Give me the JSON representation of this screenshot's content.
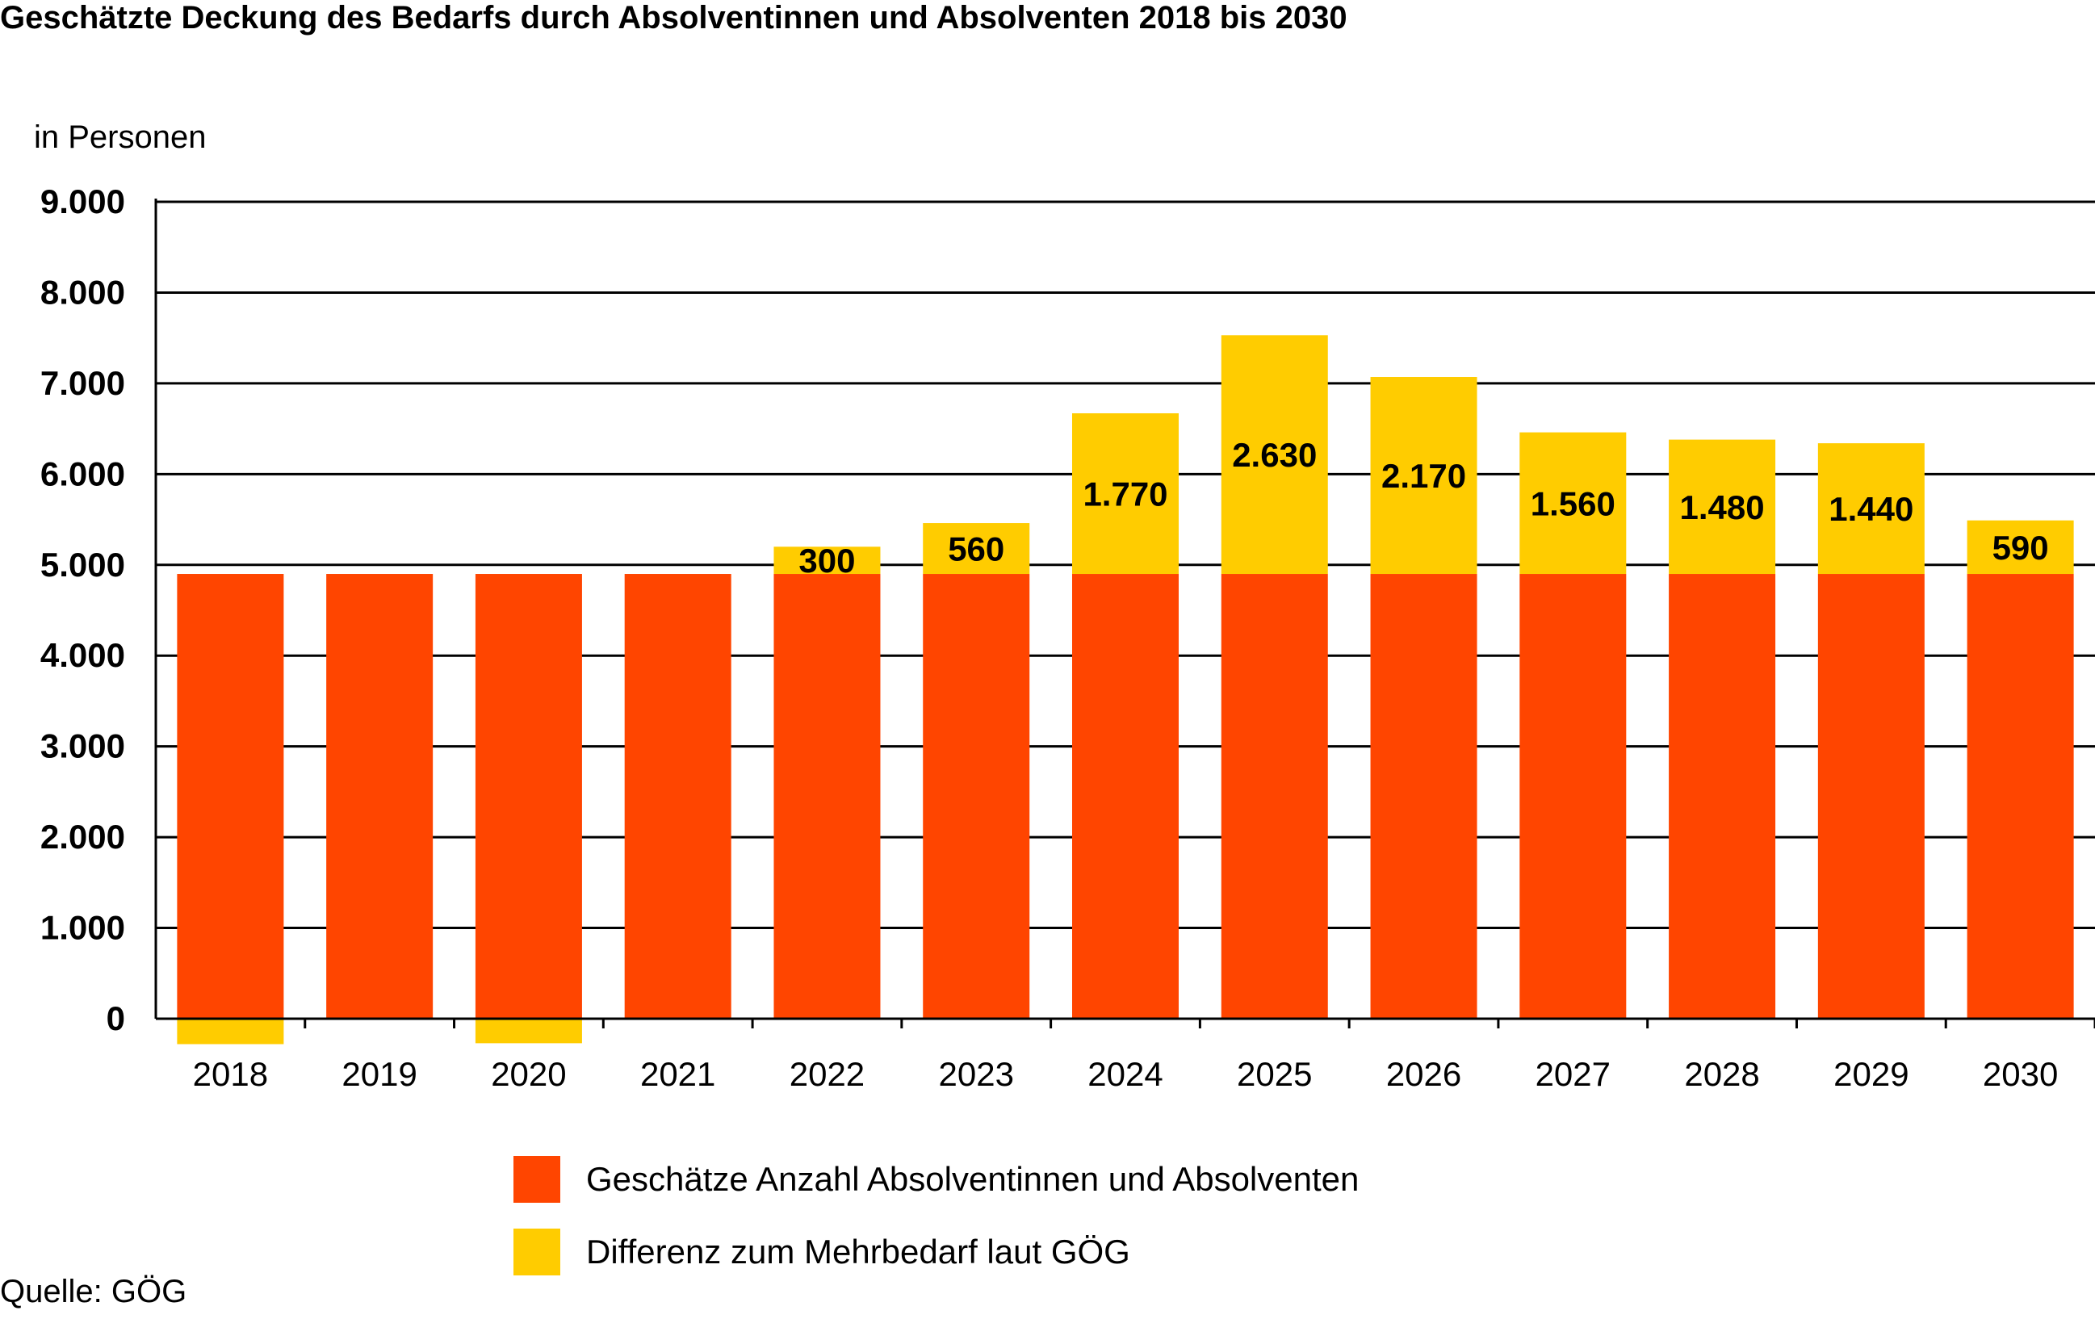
{
  "title": "Geschätzte Deckung des Bedarfs durch Absolventinnen und Absolventen 2018 bis 2030",
  "source": "Quelle: GÖG",
  "chart_data": {
    "type": "bar",
    "stacked": true,
    "title": "Geschätzte Deckung des Bedarfs durch Absolventinnen und Absolventen 2018 bis 2030",
    "ylabel": "in Personen",
    "xlabel": "",
    "ylim": [
      0,
      9000
    ],
    "yticks": [
      0,
      1000,
      2000,
      3000,
      4000,
      5000,
      6000,
      7000,
      8000,
      9000
    ],
    "ytick_labels": [
      "0",
      "1.000",
      "2.000",
      "3.000",
      "4.000",
      "5.000",
      "6.000",
      "7.000",
      "8.000",
      "9.000"
    ],
    "grid": true,
    "legend_position": "bottom",
    "categories": [
      "2018",
      "2019",
      "2020",
      "2021",
      "2022",
      "2023",
      "2024",
      "2025",
      "2026",
      "2027",
      "2028",
      "2029",
      "2030"
    ],
    "series": [
      {
        "name": "Geschätze Anzahl Absolventinnen und Absolventen",
        "color": "#FF4500",
        "values": [
          4900,
          4900,
          4900,
          4900,
          4900,
          4900,
          4900,
          4900,
          4900,
          4900,
          4900,
          4900,
          4900
        ]
      },
      {
        "name": "Differenz zum Mehrbedarf laut GÖG",
        "color": "#FFCC00",
        "values": [
          -280,
          0,
          -270,
          0,
          300,
          560,
          1770,
          2630,
          2170,
          1560,
          1480,
          1440,
          590
        ],
        "labels": [
          "",
          "",
          "",
          "",
          "300",
          "560",
          "1.770",
          "2.630",
          "2.170",
          "1.560",
          "1.480",
          "1.440",
          "590"
        ]
      }
    ]
  }
}
